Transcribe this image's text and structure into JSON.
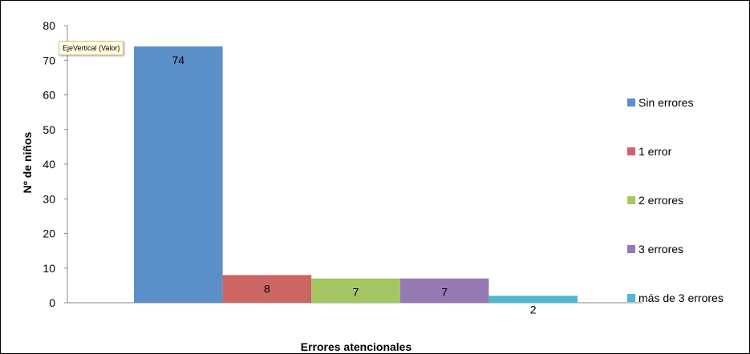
{
  "chart_data": {
    "type": "bar",
    "xlabel": "Errores atencionales",
    "ylabel": "Nº de niños",
    "ylim": [
      0,
      80
    ],
    "yticks": [
      0,
      10,
      20,
      30,
      40,
      50,
      60,
      70,
      80
    ],
    "grid": false,
    "legend_position": "right",
    "series": [
      {
        "name": "Sin errores",
        "value": 74,
        "color": "#5b8fc7"
      },
      {
        "name": "1 error",
        "value": 8,
        "color": "#cc6662"
      },
      {
        "name": "2 errores",
        "value": 7,
        "color": "#a4c763"
      },
      {
        "name": "3 errores",
        "value": 7,
        "color": "#9479b3"
      },
      {
        "name": "más de 3 errores",
        "value": 2,
        "color": "#4db8cf"
      }
    ]
  },
  "tooltip": {
    "text": "EjeVertical (Valor)"
  }
}
